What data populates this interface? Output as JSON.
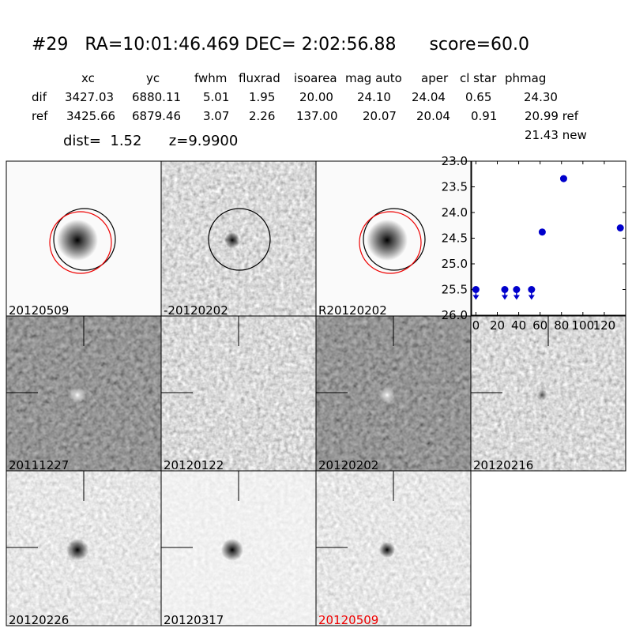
{
  "header": {
    "title": "#29   RA=10:01:46.469 DEC= 2:02:56.88      score=60.0"
  },
  "table": {
    "columns": [
      "xc",
      "yc",
      "fwhm",
      "fluxrad",
      "isoarea",
      "mag auto",
      "aper",
      "cl star",
      "phmag"
    ],
    "rows": [
      [
        "dif",
        "3427.03",
        "6880.11",
        "5.01",
        "1.95",
        "20.00",
        "24.10",
        "24.04",
        "0.65",
        "24.30"
      ],
      [
        "ref",
        "3425.66",
        "6879.46",
        "3.07",
        "2.26",
        "137.00",
        "20.07",
        "20.04",
        "0.91",
        "20.99 ref"
      ]
    ],
    "extra": "21.43 new"
  },
  "summary": "dist=  1.52      z=9.9900",
  "stamps": [
    "20120509",
    "-20120202",
    "R20120202",
    "20111227",
    "20120122",
    "20120202",
    "20120216",
    "20120226",
    "20120317",
    "20120509"
  ],
  "chart_data": {
    "type": "scatter",
    "xlim": [
      -4,
      140
    ],
    "xticks": [
      0,
      20,
      40,
      60,
      80,
      100,
      120
    ],
    "ylim": [
      26.0,
      23.0
    ],
    "yticks": [
      {
        "value": 23.0,
        "label": "23.0"
      },
      {
        "value": 23.5,
        "label": "23.5"
      },
      {
        "value": 24.0,
        "label": "24.0"
      },
      {
        "value": 24.5,
        "label": "24.5"
      },
      {
        "value": 25.0,
        "label": "25.0"
      },
      {
        "value": 25.5,
        "label": "25.5"
      },
      {
        "value": 26.0,
        "label": "26.0"
      }
    ],
    "series": [
      {
        "marker": "point",
        "color": "#0000cc",
        "x": [
          62,
          82,
          135
        ],
        "values": [
          24.38,
          23.34,
          24.3
        ],
        "errors": [
          0.06,
          0.03,
          0.05
        ]
      },
      {
        "marker": "limit",
        "color": "#0000cc",
        "x": [
          0,
          27,
          38,
          52
        ],
        "values": [
          25.5,
          25.5,
          25.5,
          25.5
        ]
      }
    ]
  }
}
